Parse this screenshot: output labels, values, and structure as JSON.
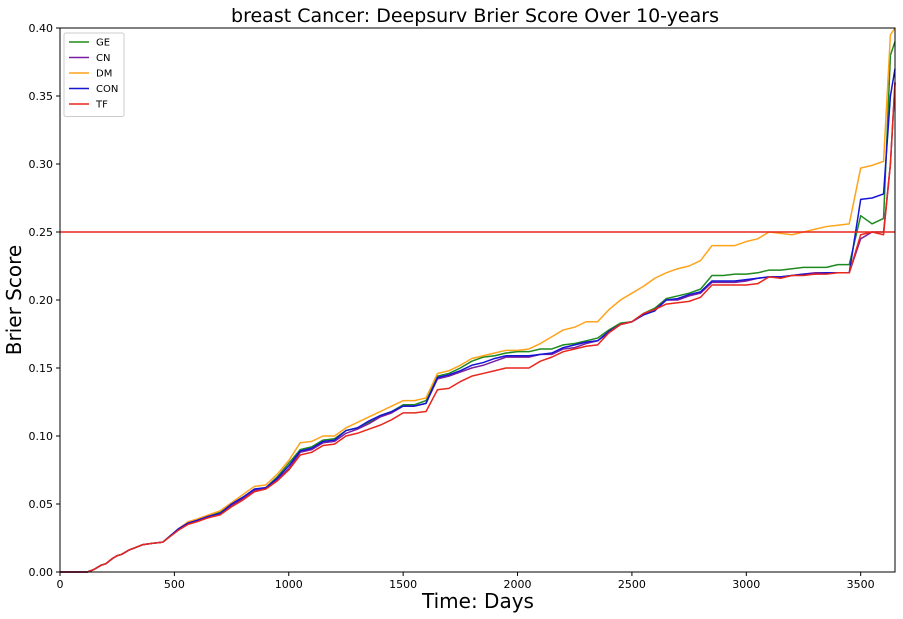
{
  "chart_data": {
    "type": "line",
    "title": "breast Cancer: Deepsurv Brier Score Over 10-years",
    "xlabel": "Time: Days",
    "ylabel": "Brier Score",
    "xlim": [
      0,
      3650
    ],
    "ylim": [
      0,
      0.4
    ],
    "xticks": [
      0,
      500,
      1000,
      1500,
      2000,
      2500,
      3000,
      3500
    ],
    "yticks": [
      "0.00",
      "0.05",
      "0.10",
      "0.15",
      "0.20",
      "0.25",
      "0.30",
      "0.35",
      "0.40"
    ],
    "grid": false,
    "legend_position": "top-left",
    "reference_line": {
      "y": 0.25,
      "color": "#e8271e"
    },
    "x": [
      0,
      120,
      150,
      180,
      200,
      230,
      250,
      270,
      300,
      330,
      360,
      400,
      450,
      520,
      560,
      600,
      650,
      700,
      750,
      800,
      850,
      900,
      950,
      1000,
      1050,
      1100,
      1150,
      1200,
      1250,
      1300,
      1350,
      1400,
      1450,
      1500,
      1550,
      1600,
      1650,
      1700,
      1750,
      1800,
      1850,
      1900,
      1950,
      2000,
      2050,
      2100,
      2150,
      2200,
      2250,
      2300,
      2350,
      2400,
      2450,
      2500,
      2550,
      2600,
      2650,
      2700,
      2750,
      2800,
      2850,
      2900,
      2950,
      3000,
      3050,
      3100,
      3150,
      3200,
      3250,
      3300,
      3350,
      3400,
      3450,
      3500,
      3550,
      3600,
      3630,
      3650
    ],
    "series": [
      {
        "name": "GE",
        "color": "#1f8a1f",
        "values": [
          0,
          0,
          0.002,
          0.005,
          0.006,
          0.01,
          0.012,
          0.013,
          0.016,
          0.018,
          0.02,
          0.021,
          0.022,
          0.032,
          0.036,
          0.038,
          0.041,
          0.044,
          0.05,
          0.055,
          0.06,
          0.062,
          0.07,
          0.08,
          0.09,
          0.092,
          0.097,
          0.098,
          0.104,
          0.106,
          0.11,
          0.115,
          0.118,
          0.123,
          0.123,
          0.126,
          0.144,
          0.146,
          0.15,
          0.155,
          0.158,
          0.159,
          0.161,
          0.162,
          0.162,
          0.164,
          0.164,
          0.167,
          0.168,
          0.17,
          0.172,
          0.178,
          0.183,
          0.184,
          0.19,
          0.194,
          0.201,
          0.203,
          0.205,
          0.208,
          0.218,
          0.218,
          0.219,
          0.219,
          0.22,
          0.222,
          0.222,
          0.223,
          0.224,
          0.224,
          0.224,
          0.226,
          0.226,
          0.262,
          0.256,
          0.26,
          0.38,
          0.39
        ]
      },
      {
        "name": "CN",
        "color": "#7b1fa2",
        "values": [
          0,
          0,
          0.002,
          0.005,
          0.006,
          0.01,
          0.012,
          0.013,
          0.016,
          0.018,
          0.02,
          0.021,
          0.022,
          0.032,
          0.036,
          0.038,
          0.04,
          0.043,
          0.049,
          0.054,
          0.06,
          0.062,
          0.068,
          0.076,
          0.088,
          0.09,
          0.095,
          0.096,
          0.102,
          0.105,
          0.109,
          0.114,
          0.117,
          0.122,
          0.122,
          0.124,
          0.142,
          0.144,
          0.147,
          0.15,
          0.152,
          0.155,
          0.158,
          0.158,
          0.158,
          0.16,
          0.16,
          0.164,
          0.165,
          0.168,
          0.17,
          0.176,
          0.182,
          0.184,
          0.189,
          0.193,
          0.2,
          0.2,
          0.203,
          0.205,
          0.213,
          0.213,
          0.213,
          0.214,
          0.216,
          0.217,
          0.217,
          0.218,
          0.219,
          0.22,
          0.22,
          0.22,
          0.22,
          0.245,
          0.25,
          0.25,
          0.3,
          0.36
        ]
      },
      {
        "name": "DM",
        "color": "#ffa31a",
        "values": [
          0,
          0,
          0.002,
          0.005,
          0.006,
          0.01,
          0.012,
          0.013,
          0.016,
          0.018,
          0.02,
          0.021,
          0.022,
          0.032,
          0.037,
          0.039,
          0.042,
          0.045,
          0.051,
          0.057,
          0.063,
          0.064,
          0.072,
          0.082,
          0.095,
          0.096,
          0.1,
          0.1,
          0.106,
          0.11,
          0.114,
          0.118,
          0.122,
          0.126,
          0.126,
          0.128,
          0.146,
          0.148,
          0.152,
          0.157,
          0.159,
          0.161,
          0.163,
          0.163,
          0.164,
          0.168,
          0.173,
          0.178,
          0.18,
          0.184,
          0.184,
          0.193,
          0.2,
          0.205,
          0.21,
          0.216,
          0.22,
          0.223,
          0.225,
          0.229,
          0.24,
          0.24,
          0.24,
          0.243,
          0.245,
          0.25,
          0.249,
          0.248,
          0.25,
          0.252,
          0.254,
          0.255,
          0.256,
          0.297,
          0.299,
          0.302,
          0.395,
          0.4
        ]
      },
      {
        "name": "CON",
        "color": "#1515d6",
        "values": [
          0,
          0,
          0.002,
          0.005,
          0.006,
          0.01,
          0.012,
          0.013,
          0.016,
          0.018,
          0.02,
          0.021,
          0.022,
          0.032,
          0.036,
          0.038,
          0.041,
          0.043,
          0.05,
          0.055,
          0.061,
          0.062,
          0.069,
          0.078,
          0.089,
          0.091,
          0.096,
          0.097,
          0.104,
          0.106,
          0.111,
          0.115,
          0.118,
          0.122,
          0.122,
          0.124,
          0.143,
          0.145,
          0.148,
          0.152,
          0.154,
          0.157,
          0.159,
          0.159,
          0.159,
          0.16,
          0.161,
          0.165,
          0.167,
          0.169,
          0.17,
          0.177,
          0.182,
          0.184,
          0.189,
          0.192,
          0.2,
          0.201,
          0.204,
          0.206,
          0.214,
          0.214,
          0.214,
          0.215,
          0.216,
          0.217,
          0.217,
          0.218,
          0.219,
          0.219,
          0.22,
          0.22,
          0.22,
          0.274,
          0.275,
          0.278,
          0.35,
          0.37
        ]
      },
      {
        "name": "TF",
        "color": "#e8271e",
        "values": [
          0,
          0,
          0.002,
          0.005,
          0.006,
          0.01,
          0.012,
          0.013,
          0.016,
          0.018,
          0.02,
          0.021,
          0.022,
          0.031,
          0.035,
          0.037,
          0.04,
          0.042,
          0.048,
          0.053,
          0.059,
          0.061,
          0.067,
          0.075,
          0.086,
          0.088,
          0.093,
          0.094,
          0.1,
          0.102,
          0.105,
          0.108,
          0.112,
          0.117,
          0.117,
          0.118,
          0.134,
          0.135,
          0.14,
          0.144,
          0.146,
          0.148,
          0.15,
          0.15,
          0.15,
          0.155,
          0.158,
          0.162,
          0.164,
          0.166,
          0.167,
          0.176,
          0.182,
          0.184,
          0.19,
          0.193,
          0.197,
          0.198,
          0.199,
          0.202,
          0.211,
          0.211,
          0.211,
          0.211,
          0.212,
          0.217,
          0.216,
          0.218,
          0.218,
          0.219,
          0.219,
          0.22,
          0.22,
          0.248,
          0.25,
          0.248,
          0.3,
          0.36
        ]
      }
    ]
  }
}
